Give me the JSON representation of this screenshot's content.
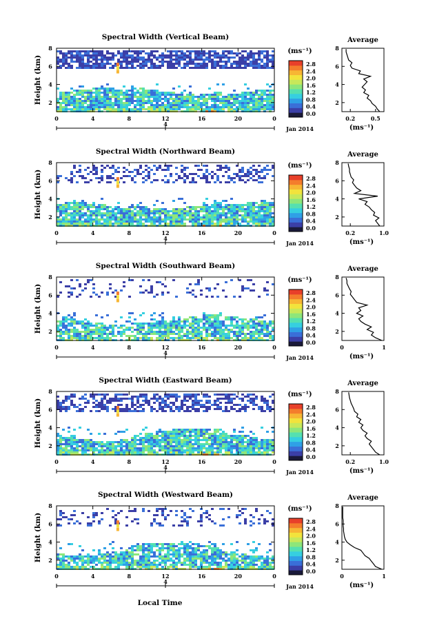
{
  "figure": {
    "x_common_label": "Local Time",
    "date_label": "Jan 2014",
    "colorbar_unit": "(ms⁻¹)",
    "colorbar_ticks": [
      "0.0",
      "0.4",
      "0.8",
      "1.2",
      "1.6",
      "2.0",
      "2.4",
      "2.8"
    ],
    "colorbar_ticks_width": 8,
    "colormap": [
      "#1a1a3a",
      "#3b3fa7",
      "#3a6fd8",
      "#2fa0e6",
      "#36cfe0",
      "#55e0b0",
      "#8ee67a",
      "#c8e85a",
      "#f2e33c",
      "#f7b634",
      "#f47d2c",
      "#e8402a"
    ],
    "palette": {
      "dark": "#1a1a3a",
      "blue": "#3a5fd0",
      "mid": "#2fa0e6",
      "cyan": "#36cfe0",
      "green": "#8ee67a",
      "yellow": "#f2e33c",
      "orange": "#f47d2c",
      "red": "#e8402a"
    }
  },
  "chart_data": [
    {
      "type": "heatmap",
      "title": "Spectral Width (Vertical Beam)",
      "ylabel": "Height (km)",
      "xlabel": "Local Time",
      "xlim": [
        0,
        24
      ],
      "ylim": [
        1,
        8
      ],
      "x_ticks": [
        "0",
        "4",
        "8",
        "12",
        "16",
        "20",
        "0"
      ],
      "x_day_tick": "4",
      "y_ticks": [
        "2",
        "4",
        "6",
        "8"
      ],
      "colorbar_range": [
        0,
        2.8
      ],
      "profile": {
        "title": "Average",
        "xlabel": "(ms⁻¹)",
        "x_ticks": [
          "0.2",
          "0.5"
        ],
        "x_tick_values": [
          0.2,
          0.5
        ],
        "xlim": [
          0.1,
          0.6
        ],
        "ylim": [
          1,
          8
        ],
        "y_ticks": [
          "2",
          "4",
          "6",
          "8"
        ],
        "heights": [
          1.0,
          1.3,
          1.6,
          1.9,
          2.2,
          2.5,
          2.8,
          3.1,
          3.4,
          3.7,
          4.0,
          4.3,
          4.6,
          4.9,
          5.2,
          5.5,
          5.8,
          6.1,
          6.4,
          6.7,
          7.0,
          7.3,
          7.6,
          7.9
        ],
        "values": [
          0.55,
          0.52,
          0.5,
          0.46,
          0.44,
          0.4,
          0.42,
          0.36,
          0.38,
          0.34,
          0.37,
          0.4,
          0.36,
          0.44,
          0.3,
          0.32,
          0.22,
          0.2,
          0.22,
          0.18,
          0.17,
          0.16,
          0.15,
          0.15
        ]
      }
    },
    {
      "type": "heatmap",
      "title": "Spectral Width (Northward Beam)",
      "ylabel": "Height (km)",
      "xlabel": "Local Time",
      "xlim": [
        0,
        24
      ],
      "ylim": [
        1,
        8
      ],
      "x_ticks": [
        "0",
        "4",
        "8",
        "12",
        "16",
        "20",
        "0"
      ],
      "x_day_tick": "4",
      "y_ticks": [
        "2",
        "4",
        "6",
        "8"
      ],
      "colorbar_range": [
        0,
        2.8
      ],
      "profile": {
        "title": "Average",
        "xlabel": "(ms⁻¹)",
        "x_ticks": [
          "0.2",
          "1.0"
        ],
        "x_tick_values": [
          0.2,
          1.0
        ],
        "xlim": [
          0.0,
          1.0
        ],
        "ylim": [
          1,
          8
        ],
        "y_ticks": [
          "2",
          "4",
          "6",
          "8"
        ],
        "heights": [
          1.0,
          1.3,
          1.6,
          1.9,
          2.2,
          2.5,
          2.8,
          3.1,
          3.4,
          3.7,
          4.0,
          4.3,
          4.6,
          4.9,
          5.2,
          5.5,
          5.8,
          6.1,
          6.4,
          6.7,
          7.0,
          7.3,
          7.6,
          7.9
        ],
        "values": [
          0.9,
          0.85,
          0.8,
          0.88,
          0.75,
          0.78,
          0.7,
          0.65,
          0.55,
          0.6,
          0.4,
          0.85,
          0.3,
          0.45,
          0.35,
          0.3,
          0.25,
          0.28,
          0.22,
          0.2,
          0.18,
          0.18,
          0.16,
          0.15
        ]
      }
    },
    {
      "type": "heatmap",
      "title": "Spectral Width (Southward Beam)",
      "ylabel": "Height (km)",
      "xlabel": "Local Time",
      "xlim": [
        0,
        24
      ],
      "ylim": [
        1,
        8
      ],
      "x_ticks": [
        "0",
        "4",
        "8",
        "12",
        "16",
        "20",
        "0"
      ],
      "x_day_tick": "4",
      "y_ticks": [
        "2",
        "4",
        "6",
        "8"
      ],
      "colorbar_range": [
        0,
        2.8
      ],
      "profile": {
        "title": "Average",
        "xlabel": "(ms⁻¹)",
        "x_ticks": [
          "0",
          "1"
        ],
        "x_tick_values": [
          0,
          1
        ],
        "xlim": [
          0,
          1
        ],
        "ylim": [
          1,
          8
        ],
        "y_ticks": [
          "2",
          "4",
          "6",
          "8"
        ],
        "heights": [
          1.0,
          1.3,
          1.6,
          1.9,
          2.2,
          2.5,
          2.8,
          3.1,
          3.4,
          3.7,
          4.0,
          4.3,
          4.6,
          4.9,
          5.2,
          5.5,
          5.8,
          6.1,
          6.4,
          6.7,
          7.0,
          7.3,
          7.6,
          7.9
        ],
        "values": [
          0.95,
          0.8,
          0.7,
          0.75,
          0.6,
          0.7,
          0.55,
          0.45,
          0.4,
          0.5,
          0.35,
          0.45,
          0.4,
          0.6,
          0.35,
          0.3,
          0.25,
          0.2,
          0.22,
          0.18,
          0.15,
          0.12,
          0.12,
          0.1
        ]
      }
    },
    {
      "type": "heatmap",
      "title": "Spectral Width (Eastward Beam)",
      "ylabel": "Height (km)",
      "xlabel": "Local Time",
      "xlim": [
        0,
        24
      ],
      "ylim": [
        1,
        8
      ],
      "x_ticks": [
        "0",
        "4",
        "8",
        "12",
        "16",
        "20",
        "0"
      ],
      "x_day_tick": "4",
      "y_ticks": [
        "2",
        "4",
        "6",
        "8"
      ],
      "colorbar_range": [
        0,
        2.8
      ],
      "profile": {
        "title": "Average",
        "xlabel": "(ms⁻¹)",
        "x_ticks": [
          "0.2",
          "1.0"
        ],
        "x_tick_values": [
          0.2,
          1.0
        ],
        "xlim": [
          0.0,
          1.0
        ],
        "ylim": [
          1,
          8
        ],
        "y_ticks": [
          "2",
          "4",
          "6",
          "8"
        ],
        "heights": [
          1.0,
          1.3,
          1.6,
          1.9,
          2.2,
          2.5,
          2.8,
          3.1,
          3.4,
          3.7,
          4.0,
          4.3,
          4.6,
          4.9,
          5.2,
          5.5,
          5.8,
          6.1,
          6.4,
          6.7,
          7.0,
          7.3,
          7.6,
          7.9
        ],
        "values": [
          0.9,
          0.8,
          0.75,
          0.7,
          0.65,
          0.7,
          0.6,
          0.55,
          0.6,
          0.5,
          0.45,
          0.5,
          0.4,
          0.45,
          0.35,
          0.38,
          0.3,
          0.28,
          0.25,
          0.22,
          0.2,
          0.18,
          0.17,
          0.16
        ]
      }
    },
    {
      "type": "heatmap",
      "title": "Spectral Width (Westward Beam)",
      "ylabel": "Height (km)",
      "xlabel": "Local Time",
      "xlim": [
        0,
        24
      ],
      "ylim": [
        1,
        8
      ],
      "x_ticks": [
        "0",
        "4",
        "8",
        "12",
        "16",
        "20",
        "0"
      ],
      "x_day_tick": "4",
      "y_ticks": [
        "2",
        "4",
        "6",
        "8"
      ],
      "colorbar_range": [
        0,
        2.8
      ],
      "profile": {
        "title": "Average",
        "xlabel": "(ms⁻¹)",
        "x_ticks": [
          "0",
          "1"
        ],
        "x_tick_values": [
          0,
          1
        ],
        "xlim": [
          0,
          1
        ],
        "ylim": [
          1,
          8
        ],
        "y_ticks": [
          "2",
          "4",
          "6",
          "8"
        ],
        "heights": [
          1.0,
          1.3,
          1.6,
          1.9,
          2.2,
          2.5,
          2.8,
          3.1,
          3.4,
          3.7,
          4.0,
          4.3,
          4.6,
          4.9,
          5.2,
          5.5,
          5.8,
          6.1,
          6.4,
          6.7,
          7.0,
          7.3,
          7.6,
          7.9
        ],
        "values": [
          0.95,
          0.8,
          0.75,
          0.7,
          0.65,
          0.55,
          0.5,
          0.45,
          0.3,
          0.2,
          0.12,
          0.08,
          0.06,
          0.05,
          0.04,
          0.04,
          0.03,
          0.03,
          0.03,
          0.02,
          0.02,
          0.02,
          0.02,
          0.02
        ]
      }
    }
  ]
}
